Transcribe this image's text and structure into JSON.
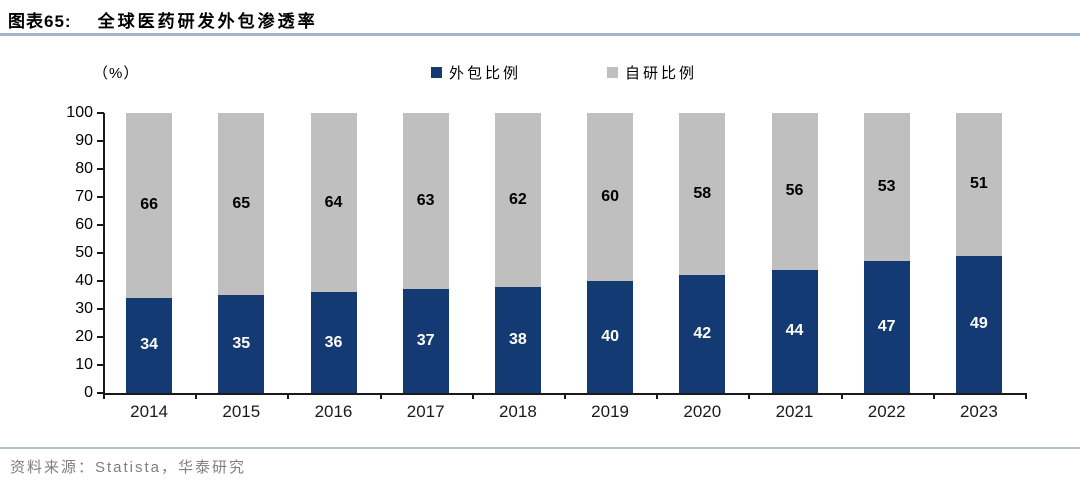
{
  "header": {
    "figure_label": "图表65:",
    "title": "全球医药研发外包渗透率"
  },
  "chart": {
    "unit_label": "（%）"
  },
  "footer": {
    "source": "资料来源：Statista，华泰研究"
  },
  "chart_data": {
    "type": "bar",
    "stacked": true,
    "title": "全球医药研发外包渗透率",
    "xlabel": "",
    "ylabel": "（%）",
    "categories": [
      "2014",
      "2015",
      "2016",
      "2017",
      "2018",
      "2019",
      "2020",
      "2021",
      "2022",
      "2023"
    ],
    "series": [
      {
        "name": "外包比例",
        "color": "#143a73",
        "label_color": "#ffffff",
        "values": [
          34,
          35,
          36,
          37,
          38,
          40,
          42,
          44,
          47,
          49
        ]
      },
      {
        "name": "自研比例",
        "color": "#bfbfbf",
        "label_color": "#000000",
        "values": [
          66,
          65,
          64,
          63,
          62,
          60,
          58,
          56,
          53,
          51
        ]
      }
    ],
    "ylim": [
      0,
      100
    ],
    "ytick_step": 10,
    "grid": false,
    "legend_position": "top-center",
    "axis_color": "#1a1a1a"
  }
}
